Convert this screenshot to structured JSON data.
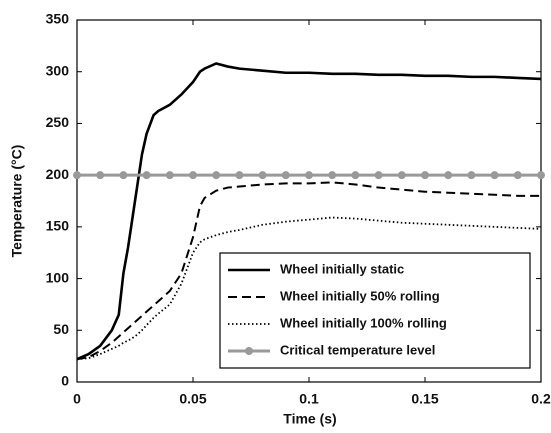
{
  "chart_data": {
    "type": "line",
    "xlabel": "Time (s)",
    "ylabel": "Temperature (°C)",
    "x": [
      0,
      0.005,
      0.01,
      0.015,
      0.018,
      0.02,
      0.022,
      0.025,
      0.028,
      0.03,
      0.033,
      0.035,
      0.04,
      0.045,
      0.05,
      0.053,
      0.055,
      0.06,
      0.065,
      0.07,
      0.08,
      0.09,
      0.1,
      0.11,
      0.12,
      0.13,
      0.14,
      0.15,
      0.16,
      0.17,
      0.18,
      0.19,
      0.2
    ],
    "series": [
      {
        "name": "Wheel initially static",
        "color": "#000000",
        "style": "solid",
        "values": [
          22,
          27,
          35,
          50,
          65,
          105,
          130,
          175,
          220,
          240,
          258,
          262,
          268,
          278,
          290,
          300,
          303,
          308,
          305,
          303,
          301,
          299,
          299,
          298,
          298,
          297,
          297,
          296,
          296,
          295,
          295,
          294,
          293
        ]
      },
      {
        "name": "Wheel initially 50% rolling",
        "color": "#000000",
        "style": "dashed",
        "values": [
          22,
          24,
          30,
          38,
          44,
          48,
          52,
          58,
          64,
          68,
          74,
          78,
          88,
          105,
          140,
          170,
          178,
          185,
          188,
          189,
          191,
          192,
          192,
          193,
          191,
          188,
          186,
          184,
          183,
          182,
          181,
          180,
          180
        ]
      },
      {
        "name": "Wheel initially 100% rolling",
        "color": "#000000",
        "style": "dotted",
        "values": [
          22,
          23,
          27,
          32,
          35,
          38,
          40,
          44,
          50,
          55,
          62,
          66,
          75,
          95,
          125,
          135,
          138,
          142,
          145,
          147,
          152,
          155,
          157,
          159,
          158,
          156,
          154,
          153,
          152,
          151,
          150,
          149,
          148
        ]
      },
      {
        "name": "Critical temperature level",
        "color": "#999999",
        "style": "markers",
        "x": [
          0,
          0.01,
          0.02,
          0.03,
          0.04,
          0.05,
          0.06,
          0.07,
          0.08,
          0.09,
          0.1,
          0.11,
          0.12,
          0.13,
          0.14,
          0.15,
          0.16,
          0.17,
          0.18,
          0.19,
          0.2
        ],
        "values": [
          200,
          200,
          200,
          200,
          200,
          200,
          200,
          200,
          200,
          200,
          200,
          200,
          200,
          200,
          200,
          200,
          200,
          200,
          200,
          200,
          200
        ]
      }
    ],
    "xlim": [
      0,
      0.2
    ],
    "xticks": [
      0,
      0.05,
      0.1,
      0.15,
      0.2
    ],
    "ylim": [
      0,
      350
    ],
    "yticks": [
      0,
      50,
      100,
      150,
      200,
      250,
      300,
      350
    ],
    "grid": false,
    "legend": "lower right"
  }
}
